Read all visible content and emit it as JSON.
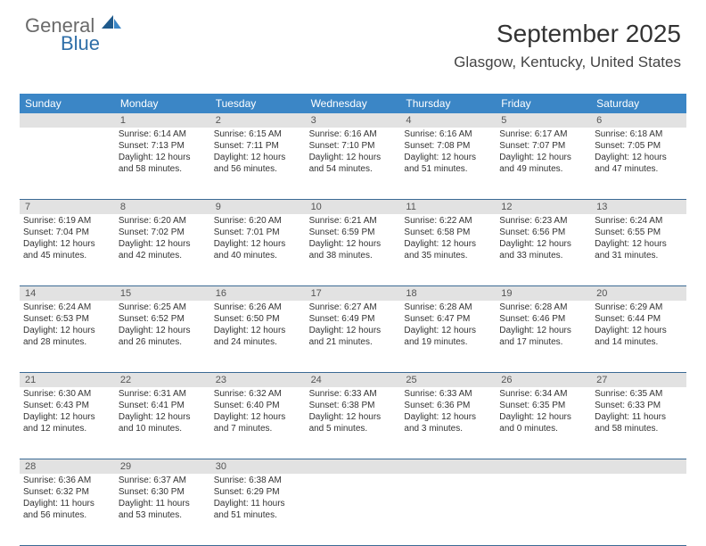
{
  "brand": {
    "word1": "General",
    "word2": "Blue"
  },
  "title": "September 2025",
  "location": "Glasgow, Kentucky, United States",
  "colors": {
    "header_bg": "#3b86c6",
    "header_fg": "#ffffff",
    "daynum_bg": "#e2e2e2",
    "week_border": "#3b6a94",
    "brand_gray": "#6a6a6a",
    "brand_blue": "#2f6fa8"
  },
  "day_headers": [
    "Sunday",
    "Monday",
    "Tuesday",
    "Wednesday",
    "Thursday",
    "Friday",
    "Saturday"
  ],
  "weeks": [
    {
      "nums": [
        "",
        "1",
        "2",
        "3",
        "4",
        "5",
        "6"
      ],
      "cells": [
        null,
        {
          "sr": "Sunrise: 6:14 AM",
          "ss": "Sunset: 7:13 PM",
          "d1": "Daylight: 12 hours",
          "d2": "and 58 minutes."
        },
        {
          "sr": "Sunrise: 6:15 AM",
          "ss": "Sunset: 7:11 PM",
          "d1": "Daylight: 12 hours",
          "d2": "and 56 minutes."
        },
        {
          "sr": "Sunrise: 6:16 AM",
          "ss": "Sunset: 7:10 PM",
          "d1": "Daylight: 12 hours",
          "d2": "and 54 minutes."
        },
        {
          "sr": "Sunrise: 6:16 AM",
          "ss": "Sunset: 7:08 PM",
          "d1": "Daylight: 12 hours",
          "d2": "and 51 minutes."
        },
        {
          "sr": "Sunrise: 6:17 AM",
          "ss": "Sunset: 7:07 PM",
          "d1": "Daylight: 12 hours",
          "d2": "and 49 minutes."
        },
        {
          "sr": "Sunrise: 6:18 AM",
          "ss": "Sunset: 7:05 PM",
          "d1": "Daylight: 12 hours",
          "d2": "and 47 minutes."
        }
      ]
    },
    {
      "nums": [
        "7",
        "8",
        "9",
        "10",
        "11",
        "12",
        "13"
      ],
      "cells": [
        {
          "sr": "Sunrise: 6:19 AM",
          "ss": "Sunset: 7:04 PM",
          "d1": "Daylight: 12 hours",
          "d2": "and 45 minutes."
        },
        {
          "sr": "Sunrise: 6:20 AM",
          "ss": "Sunset: 7:02 PM",
          "d1": "Daylight: 12 hours",
          "d2": "and 42 minutes."
        },
        {
          "sr": "Sunrise: 6:20 AM",
          "ss": "Sunset: 7:01 PM",
          "d1": "Daylight: 12 hours",
          "d2": "and 40 minutes."
        },
        {
          "sr": "Sunrise: 6:21 AM",
          "ss": "Sunset: 6:59 PM",
          "d1": "Daylight: 12 hours",
          "d2": "and 38 minutes."
        },
        {
          "sr": "Sunrise: 6:22 AM",
          "ss": "Sunset: 6:58 PM",
          "d1": "Daylight: 12 hours",
          "d2": "and 35 minutes."
        },
        {
          "sr": "Sunrise: 6:23 AM",
          "ss": "Sunset: 6:56 PM",
          "d1": "Daylight: 12 hours",
          "d2": "and 33 minutes."
        },
        {
          "sr": "Sunrise: 6:24 AM",
          "ss": "Sunset: 6:55 PM",
          "d1": "Daylight: 12 hours",
          "d2": "and 31 minutes."
        }
      ]
    },
    {
      "nums": [
        "14",
        "15",
        "16",
        "17",
        "18",
        "19",
        "20"
      ],
      "cells": [
        {
          "sr": "Sunrise: 6:24 AM",
          "ss": "Sunset: 6:53 PM",
          "d1": "Daylight: 12 hours",
          "d2": "and 28 minutes."
        },
        {
          "sr": "Sunrise: 6:25 AM",
          "ss": "Sunset: 6:52 PM",
          "d1": "Daylight: 12 hours",
          "d2": "and 26 minutes."
        },
        {
          "sr": "Sunrise: 6:26 AM",
          "ss": "Sunset: 6:50 PM",
          "d1": "Daylight: 12 hours",
          "d2": "and 24 minutes."
        },
        {
          "sr": "Sunrise: 6:27 AM",
          "ss": "Sunset: 6:49 PM",
          "d1": "Daylight: 12 hours",
          "d2": "and 21 minutes."
        },
        {
          "sr": "Sunrise: 6:28 AM",
          "ss": "Sunset: 6:47 PM",
          "d1": "Daylight: 12 hours",
          "d2": "and 19 minutes."
        },
        {
          "sr": "Sunrise: 6:28 AM",
          "ss": "Sunset: 6:46 PM",
          "d1": "Daylight: 12 hours",
          "d2": "and 17 minutes."
        },
        {
          "sr": "Sunrise: 6:29 AM",
          "ss": "Sunset: 6:44 PM",
          "d1": "Daylight: 12 hours",
          "d2": "and 14 minutes."
        }
      ]
    },
    {
      "nums": [
        "21",
        "22",
        "23",
        "24",
        "25",
        "26",
        "27"
      ],
      "cells": [
        {
          "sr": "Sunrise: 6:30 AM",
          "ss": "Sunset: 6:43 PM",
          "d1": "Daylight: 12 hours",
          "d2": "and 12 minutes."
        },
        {
          "sr": "Sunrise: 6:31 AM",
          "ss": "Sunset: 6:41 PM",
          "d1": "Daylight: 12 hours",
          "d2": "and 10 minutes."
        },
        {
          "sr": "Sunrise: 6:32 AM",
          "ss": "Sunset: 6:40 PM",
          "d1": "Daylight: 12 hours",
          "d2": "and 7 minutes."
        },
        {
          "sr": "Sunrise: 6:33 AM",
          "ss": "Sunset: 6:38 PM",
          "d1": "Daylight: 12 hours",
          "d2": "and 5 minutes."
        },
        {
          "sr": "Sunrise: 6:33 AM",
          "ss": "Sunset: 6:36 PM",
          "d1": "Daylight: 12 hours",
          "d2": "and 3 minutes."
        },
        {
          "sr": "Sunrise: 6:34 AM",
          "ss": "Sunset: 6:35 PM",
          "d1": "Daylight: 12 hours",
          "d2": "and 0 minutes."
        },
        {
          "sr": "Sunrise: 6:35 AM",
          "ss": "Sunset: 6:33 PM",
          "d1": "Daylight: 11 hours",
          "d2": "and 58 minutes."
        }
      ]
    },
    {
      "nums": [
        "28",
        "29",
        "30",
        "",
        "",
        "",
        ""
      ],
      "cells": [
        {
          "sr": "Sunrise: 6:36 AM",
          "ss": "Sunset: 6:32 PM",
          "d1": "Daylight: 11 hours",
          "d2": "and 56 minutes."
        },
        {
          "sr": "Sunrise: 6:37 AM",
          "ss": "Sunset: 6:30 PM",
          "d1": "Daylight: 11 hours",
          "d2": "and 53 minutes."
        },
        {
          "sr": "Sunrise: 6:38 AM",
          "ss": "Sunset: 6:29 PM",
          "d1": "Daylight: 11 hours",
          "d2": "and 51 minutes."
        },
        null,
        null,
        null,
        null
      ]
    }
  ]
}
